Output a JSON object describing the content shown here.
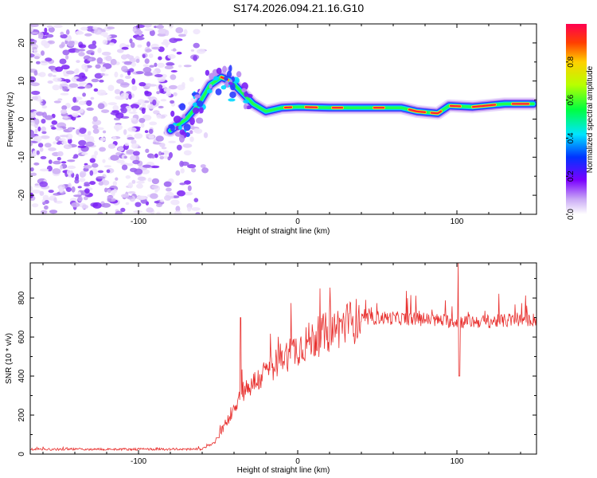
{
  "figure": {
    "title": "S174.2026.094.21.16.G10"
  },
  "chart_data": [
    {
      "type": "heatmap",
      "name": "spectrogram",
      "xlabel": "Height of straight line (km)",
      "ylabel": "Frequency (Hz)",
      "xlim": [
        -168,
        150
      ],
      "ylim": [
        -25,
        25
      ],
      "xticks": [
        -100,
        0,
        100
      ],
      "yticks": [
        -20,
        -10,
        0,
        10,
        20
      ],
      "colorbar": {
        "label": "Normalized spectral amplitude",
        "range": [
          0.0,
          1.0
        ],
        "ticks": [
          "0.0",
          "0.2",
          "0.4",
          "0.6",
          "0.8"
        ],
        "tick_values": [
          0.0,
          0.2,
          0.4,
          0.6,
          0.8
        ]
      },
      "noise_region_x": [
        -168,
        -65
      ],
      "ridge": [
        {
          "x": -80,
          "f": -3
        },
        {
          "x": -70,
          "f": 0
        },
        {
          "x": -62,
          "f": 4
        },
        {
          "x": -55,
          "f": 9
        },
        {
          "x": -48,
          "f": 11
        },
        {
          "x": -42,
          "f": 10
        },
        {
          "x": -35,
          "f": 7
        },
        {
          "x": -28,
          "f": 4
        },
        {
          "x": -20,
          "f": 2
        },
        {
          "x": -10,
          "f": 3
        },
        {
          "x": 0,
          "f": 3.2
        },
        {
          "x": 20,
          "f": 3
        },
        {
          "x": 50,
          "f": 3
        },
        {
          "x": 65,
          "f": 3
        },
        {
          "x": 75,
          "f": 2
        },
        {
          "x": 88,
          "f": 1.5
        },
        {
          "x": 95,
          "f": 3.5
        },
        {
          "x": 110,
          "f": 3.2
        },
        {
          "x": 130,
          "f": 4
        },
        {
          "x": 148,
          "f": 4
        }
      ]
    },
    {
      "type": "line",
      "name": "snr",
      "xlabel": "Height of straight line (km)",
      "ylabel": "SNR (10 * v/v)",
      "xlim": [
        -168,
        150
      ],
      "ylim": [
        0,
        980
      ],
      "xticks": [
        -100,
        0,
        100
      ],
      "yticks": [
        0,
        200,
        400,
        600,
        800
      ],
      "color": "#e8302e",
      "envelope": [
        {
          "x": -168,
          "y": 25
        },
        {
          "x": -60,
          "y": 25
        },
        {
          "x": -52,
          "y": 60
        },
        {
          "x": -45,
          "y": 160
        },
        {
          "x": -35,
          "y": 320
        },
        {
          "x": -25,
          "y": 380
        },
        {
          "x": -15,
          "y": 460
        },
        {
          "x": -5,
          "y": 520
        },
        {
          "x": 5,
          "y": 570
        },
        {
          "x": 15,
          "y": 610
        },
        {
          "x": 25,
          "y": 650
        },
        {
          "x": 35,
          "y": 680
        },
        {
          "x": 50,
          "y": 700
        },
        {
          "x": 80,
          "y": 690
        },
        {
          "x": 100,
          "y": 680
        },
        {
          "x": 120,
          "y": 680
        },
        {
          "x": 150,
          "y": 690
        }
      ],
      "spikes": [
        {
          "x": -36,
          "y": 700
        },
        {
          "x": 101,
          "y": 980
        },
        {
          "x": 101.5,
          "y": 400
        }
      ]
    }
  ]
}
